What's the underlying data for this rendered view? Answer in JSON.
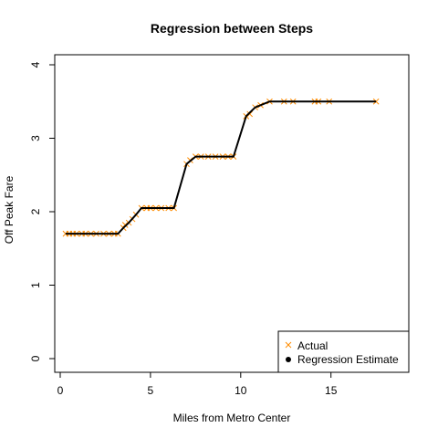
{
  "chart_data": {
    "type": "line",
    "title": "Regression between Steps",
    "xlabel": "Miles from Metro Center",
    "ylabel": "Off Peak Fare",
    "xlim": [
      0,
      17.5
    ],
    "ylim": [
      0,
      4
    ],
    "xticks": [
      0,
      5,
      10,
      15
    ],
    "yticks": [
      0,
      1,
      2,
      3,
      4
    ],
    "grid": false,
    "legend_position": "bottom-right",
    "colors": {
      "actual": "#FF8C00",
      "estimate": "#000000",
      "axis": "#000000",
      "background": "#FFFFFF"
    },
    "series": [
      {
        "name": "Actual",
        "kind": "scatter",
        "marker": "x",
        "color": "#FF8C00",
        "points": [
          [
            0.3,
            1.7
          ],
          [
            0.5,
            1.7
          ],
          [
            0.7,
            1.7
          ],
          [
            0.9,
            1.7
          ],
          [
            1.2,
            1.7
          ],
          [
            1.4,
            1.7
          ],
          [
            1.7,
            1.7
          ],
          [
            2.0,
            1.7
          ],
          [
            2.4,
            1.7
          ],
          [
            2.7,
            1.7
          ],
          [
            3.0,
            1.7
          ],
          [
            3.2,
            1.7
          ],
          [
            3.5,
            1.78
          ],
          [
            3.6,
            1.82
          ],
          [
            3.8,
            1.85
          ],
          [
            4.0,
            1.9
          ],
          [
            4.2,
            1.96
          ],
          [
            4.5,
            2.05
          ],
          [
            4.8,
            2.05
          ],
          [
            5.0,
            2.05
          ],
          [
            5.3,
            2.05
          ],
          [
            5.6,
            2.05
          ],
          [
            6.0,
            2.05
          ],
          [
            6.3,
            2.05
          ],
          [
            7.0,
            2.65
          ],
          [
            7.2,
            2.7
          ],
          [
            7.5,
            2.75
          ],
          [
            7.8,
            2.75
          ],
          [
            8.2,
            2.75
          ],
          [
            8.6,
            2.75
          ],
          [
            9.0,
            2.75
          ],
          [
            9.3,
            2.75
          ],
          [
            9.6,
            2.75
          ],
          [
            10.3,
            3.3
          ],
          [
            10.5,
            3.33
          ],
          [
            10.8,
            3.42
          ],
          [
            11.1,
            3.45
          ],
          [
            11.6,
            3.5
          ],
          [
            12.4,
            3.5
          ],
          [
            12.9,
            3.5
          ],
          [
            14.1,
            3.5
          ],
          [
            14.3,
            3.5
          ],
          [
            14.9,
            3.5
          ],
          [
            17.5,
            3.5
          ]
        ]
      },
      {
        "name": "Regression Estimate",
        "kind": "line",
        "color": "#000000",
        "points": [
          [
            0.3,
            1.7
          ],
          [
            3.2,
            1.7
          ],
          [
            3.5,
            1.78
          ],
          [
            3.8,
            1.85
          ],
          [
            4.2,
            1.96
          ],
          [
            4.5,
            2.05
          ],
          [
            6.3,
            2.05
          ],
          [
            7.0,
            2.65
          ],
          [
            7.5,
            2.75
          ],
          [
            9.6,
            2.75
          ],
          [
            10.3,
            3.3
          ],
          [
            10.8,
            3.42
          ],
          [
            11.6,
            3.5
          ],
          [
            17.5,
            3.5
          ]
        ]
      }
    ]
  }
}
